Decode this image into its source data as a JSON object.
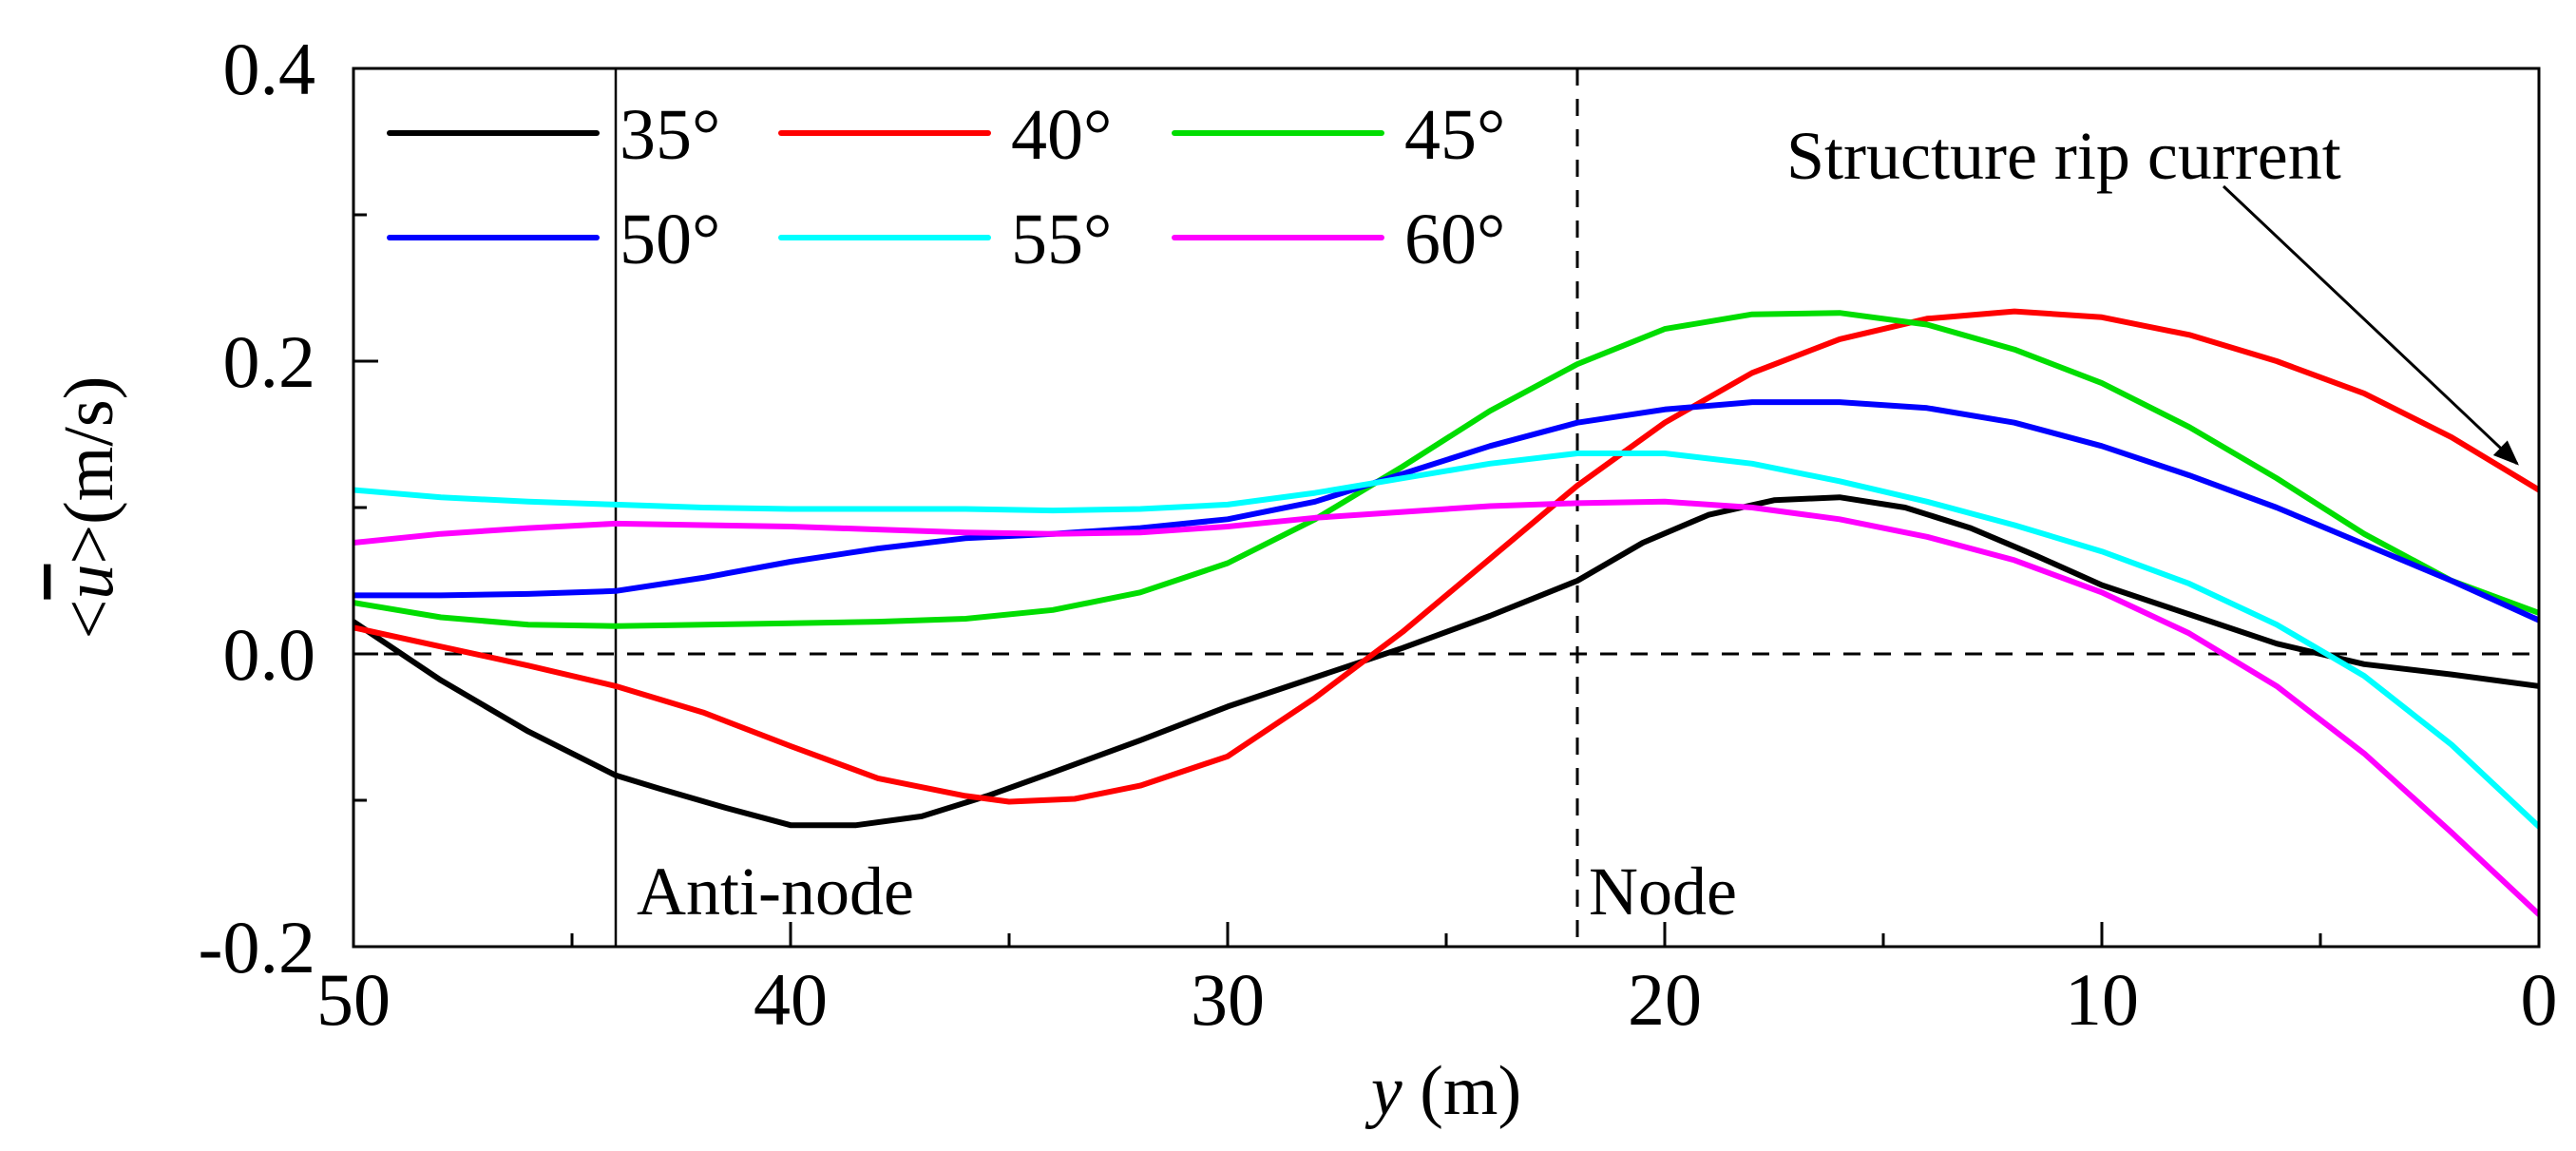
{
  "chart_data": {
    "type": "line",
    "xlabel": {
      "var": "y",
      "unit": " (m)"
    },
    "ylabel": {
      "prefix": "<",
      "var": "u",
      "suffix": ">",
      "unit": "(m/s)"
    },
    "xlim": [
      50,
      0
    ],
    "ylim": [
      -0.2,
      0.4
    ],
    "x_ticks": [
      50,
      40,
      30,
      20,
      10,
      0
    ],
    "x_tick_labels": [
      "50",
      "40",
      "30",
      "20",
      "10",
      "0"
    ],
    "x_minor_ticks": [
      45,
      35,
      25,
      15,
      5
    ],
    "y_ticks": [
      -0.2,
      0.0,
      0.2,
      0.4
    ],
    "y_tick_labels": [
      "-0.2",
      "0.0",
      "0.2",
      "0.4"
    ],
    "y_minor_ticks": [
      -0.1,
      0.1,
      0.3
    ],
    "legend_position": "top-left",
    "series": [
      {
        "name": "35°",
        "color": "#000000",
        "x": [
          50,
          48,
          46,
          44,
          43,
          41.5,
          40,
          38.5,
          37,
          35.5,
          34,
          32,
          30,
          28,
          26,
          24,
          22,
          20.5,
          19,
          17.5,
          16,
          14.5,
          13,
          11.5,
          10,
          8,
          6,
          4,
          2,
          0
        ],
        "y": [
          0.022,
          -0.018,
          -0.053,
          -0.083,
          -0.092,
          -0.105,
          -0.117,
          -0.117,
          -0.111,
          -0.097,
          -0.081,
          -0.059,
          -0.036,
          -0.016,
          0.004,
          0.026,
          0.05,
          0.076,
          0.095,
          0.105,
          0.107,
          0.1,
          0.086,
          0.067,
          0.047,
          0.027,
          0.007,
          -0.007,
          -0.014,
          -0.022
        ]
      },
      {
        "name": "40°",
        "color": "#ff0000",
        "x": [
          50,
          48,
          46,
          44,
          42,
          40,
          38,
          36,
          35,
          33.5,
          32,
          30,
          28,
          26,
          24,
          22,
          20,
          18,
          16,
          14,
          12,
          10,
          8,
          6,
          4,
          2,
          0
        ],
        "y": [
          0.018,
          0.005,
          -0.008,
          -0.022,
          -0.04,
          -0.063,
          -0.085,
          -0.097,
          -0.101,
          -0.099,
          -0.09,
          -0.07,
          -0.03,
          0.015,
          0.065,
          0.115,
          0.158,
          0.192,
          0.215,
          0.229,
          0.234,
          0.23,
          0.218,
          0.2,
          0.178,
          0.148,
          0.112
        ]
      },
      {
        "name": "45°",
        "color": "#00dd00",
        "x": [
          50,
          48,
          46,
          44,
          42,
          40,
          38,
          36,
          34,
          32,
          30,
          28,
          26,
          24,
          22,
          20,
          18,
          16,
          14,
          12,
          10,
          8,
          6,
          4,
          2,
          0
        ],
        "y": [
          0.035,
          0.025,
          0.02,
          0.019,
          0.02,
          0.021,
          0.022,
          0.024,
          0.03,
          0.042,
          0.062,
          0.092,
          0.128,
          0.166,
          0.198,
          0.222,
          0.232,
          0.233,
          0.225,
          0.208,
          0.185,
          0.155,
          0.12,
          0.082,
          0.05,
          0.028
        ]
      },
      {
        "name": "50°",
        "color": "#0000ff",
        "x": [
          50,
          48,
          46,
          44,
          42,
          40,
          38,
          36,
          34,
          32,
          30,
          28,
          26,
          24,
          22,
          20,
          18,
          16,
          14,
          12,
          10,
          8,
          6,
          4,
          2,
          0
        ],
        "y": [
          0.04,
          0.04,
          0.041,
          0.043,
          0.052,
          0.063,
          0.072,
          0.079,
          0.082,
          0.086,
          0.092,
          0.104,
          0.123,
          0.142,
          0.158,
          0.167,
          0.172,
          0.172,
          0.168,
          0.158,
          0.142,
          0.122,
          0.1,
          0.075,
          0.05,
          0.023
        ]
      },
      {
        "name": "55°",
        "color": "#00ffff",
        "x": [
          50,
          48,
          46,
          44,
          42,
          40,
          38,
          36,
          34,
          32,
          30,
          28,
          26,
          24,
          22,
          20,
          18,
          16,
          14,
          12,
          10,
          8,
          6,
          4,
          2,
          0
        ],
        "y": [
          0.112,
          0.107,
          0.104,
          0.102,
          0.1,
          0.099,
          0.099,
          0.099,
          0.098,
          0.099,
          0.102,
          0.11,
          0.12,
          0.13,
          0.137,
          0.137,
          0.13,
          0.118,
          0.104,
          0.088,
          0.07,
          0.048,
          0.02,
          -0.015,
          -0.062,
          -0.118
        ]
      },
      {
        "name": "60°",
        "color": "#ff00ff",
        "x": [
          50,
          48,
          46,
          44,
          42,
          40,
          38,
          36,
          34,
          32,
          30,
          28,
          26,
          24,
          22,
          20,
          18,
          16,
          14,
          12,
          10,
          8,
          6,
          4,
          2,
          0
        ],
        "y": [
          0.076,
          0.082,
          0.086,
          0.089,
          0.088,
          0.087,
          0.085,
          0.083,
          0.082,
          0.083,
          0.087,
          0.093,
          0.097,
          0.101,
          0.103,
          0.104,
          0.1,
          0.092,
          0.08,
          0.064,
          0.042,
          0.014,
          -0.022,
          -0.068,
          -0.122,
          -0.178
        ]
      }
    ],
    "reference_lines": [
      {
        "orientation": "vertical",
        "x": 44,
        "style": "solid",
        "label": "Anti-node"
      },
      {
        "orientation": "vertical",
        "x": 22,
        "style": "dashed",
        "label": "Node"
      },
      {
        "orientation": "horizontal",
        "y": 0.0,
        "style": "dashed"
      }
    ],
    "annotation": {
      "text": "Structure rip current",
      "points_to": {
        "x": 0.5,
        "y": 0.13
      }
    }
  }
}
